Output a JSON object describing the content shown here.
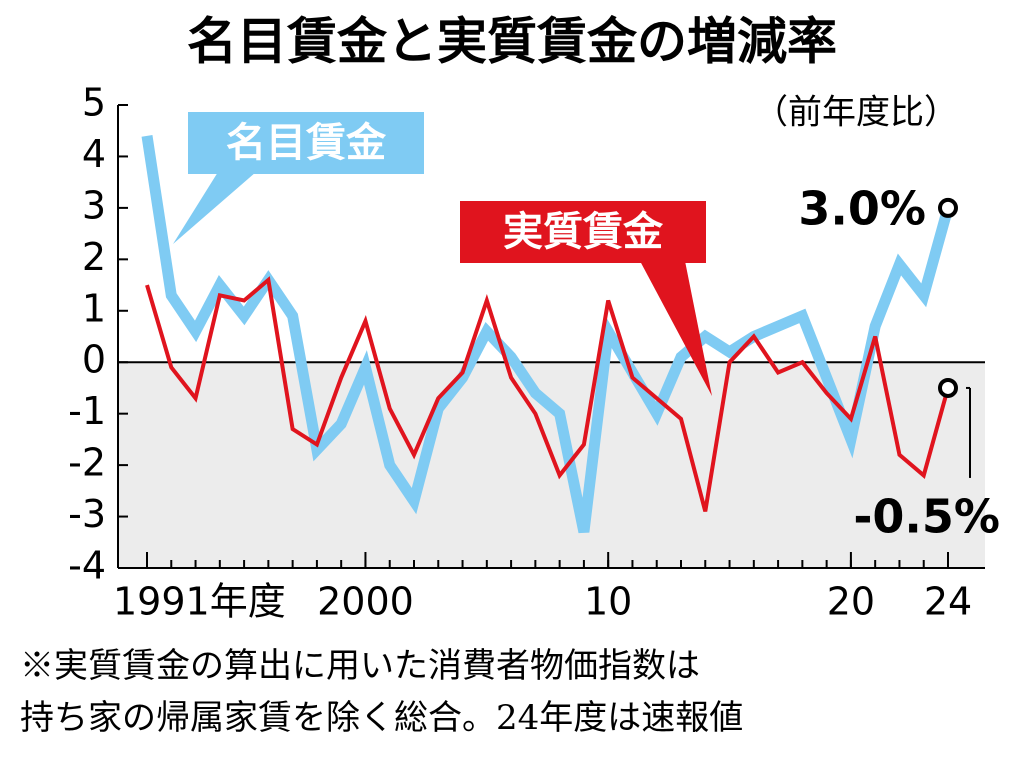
{
  "chart_data": {
    "type": "line",
    "title": "名目賃金と実質賃金の増減率",
    "subtitle": "（前年度比）",
    "notes": [
      "※実質賃金の算出に用いた消費者物価指数は",
      "持ち家の帰属家賃を除く総合。24年度は速報値"
    ],
    "x": [
      1991,
      1992,
      1993,
      1994,
      1995,
      1996,
      1997,
      1998,
      1999,
      2000,
      2001,
      2002,
      2003,
      2004,
      2005,
      2006,
      2007,
      2008,
      2009,
      2010,
      2011,
      2012,
      2013,
      2014,
      2015,
      2016,
      2017,
      2018,
      2019,
      2020,
      2021,
      2022,
      2023,
      2024
    ],
    "xlim": [
      1991,
      2024
    ],
    "xticks": [
      {
        "value": 1991,
        "label": "1991年度"
      },
      2000,
      {
        "value": 2010,
        "label": "10"
      },
      {
        "value": 2020,
        "label": "20"
      },
      {
        "value": 2024,
        "label": "24"
      }
    ],
    "ylim": [
      -4,
      5
    ],
    "yticks": [
      -4,
      -3,
      -2,
      -1,
      0,
      1,
      2,
      3,
      4,
      5
    ],
    "negative_shading": "#ececec",
    "series": [
      {
        "name": "名目賃金",
        "color": "#7fcbf3",
        "values": [
          4.4,
          1.3,
          0.6,
          1.5,
          0.9,
          1.6,
          0.9,
          -1.7,
          -1.2,
          -0.1,
          -2.0,
          -2.7,
          -0.9,
          -0.3,
          0.6,
          0.1,
          -0.6,
          -1.0,
          -3.3,
          0.6,
          -0.2,
          -1.0,
          0.1,
          0.5,
          0.2,
          0.5,
          0.7,
          0.9,
          -0.3,
          -1.5,
          0.7,
          1.9,
          1.3,
          3.0
        ],
        "value_labels": [
          null,
          null,
          null,
          null,
          null,
          null,
          null,
          null,
          null,
          null,
          null,
          null,
          null,
          null,
          null,
          null,
          null,
          null,
          null,
          null,
          null,
          null,
          null,
          null,
          null,
          null,
          null,
          null,
          null,
          null,
          null,
          null,
          null,
          "3.0%"
        ]
      },
      {
        "name": "実質賃金",
        "color": "#e0141e",
        "values": [
          1.5,
          -0.1,
          -0.7,
          1.3,
          1.2,
          1.6,
          -1.3,
          -1.6,
          -0.3,
          0.8,
          -0.9,
          -1.8,
          -0.7,
          -0.2,
          1.2,
          -0.3,
          -1.0,
          -2.2,
          -1.6,
          1.2,
          -0.3,
          -0.7,
          -1.1,
          -2.9,
          0.0,
          0.5,
          -0.2,
          0.0,
          -0.6,
          -1.1,
          0.5,
          -1.8,
          -2.2,
          -0.5
        ],
        "value_labels": [
          null,
          null,
          null,
          null,
          null,
          null,
          null,
          null,
          null,
          null,
          null,
          null,
          null,
          null,
          null,
          null,
          null,
          null,
          null,
          null,
          null,
          null,
          null,
          null,
          null,
          null,
          null,
          null,
          null,
          null,
          null,
          null,
          null,
          "-0.5%"
        ]
      }
    ]
  }
}
